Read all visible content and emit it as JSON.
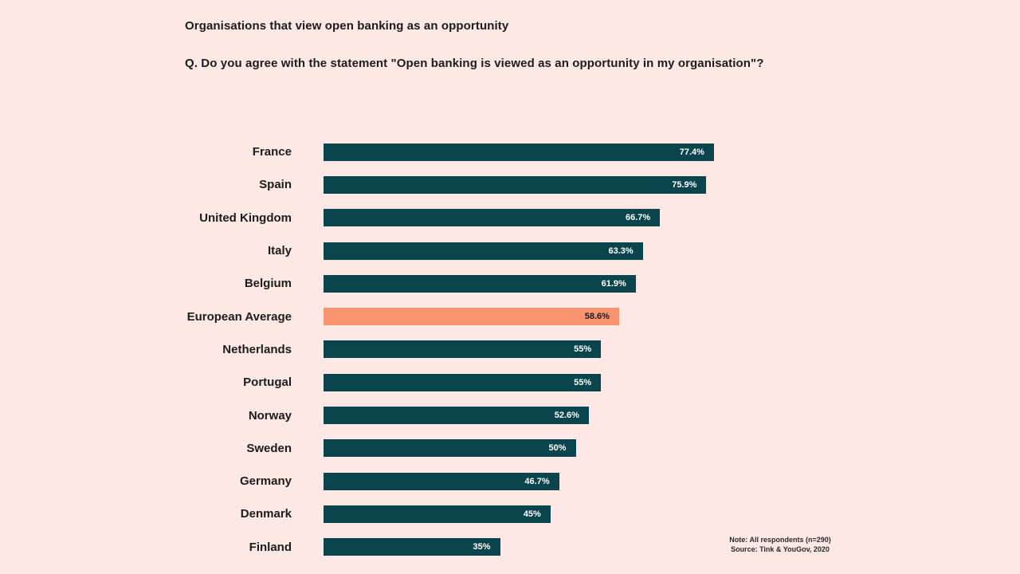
{
  "page": {
    "title": "Organisations that view open banking as an opportunity",
    "subtitle": "Q. Do you agree with the statement \"Open banking is viewed as an opportunity in my organisation\"?",
    "note_line1": "Note: All respondents (n=290)",
    "note_line2": "Source: Tink & YouGov, 2020"
  },
  "colors": {
    "background": "#fde8e5",
    "bar": "#0a444d",
    "highlight_bar": "#f79470",
    "heading_text": "#1c1c1c",
    "bar_value_text": "#ffffff",
    "highlight_value_text": "#1c1c1c"
  },
  "chart_data": {
    "type": "bar",
    "orientation": "horizontal",
    "title": "Organisations that view open banking as an opportunity",
    "subtitle": "Q. Do you agree with the statement \"Open banking is viewed as an opportunity in my organisation\"?",
    "categories": [
      "France",
      "Spain",
      "United Kingdom",
      "Italy",
      "Belgium",
      "European Average",
      "Netherlands",
      "Portugal",
      "Norway",
      "Sweden",
      "Germany",
      "Denmark",
      "Finland"
    ],
    "values": [
      77.4,
      75.9,
      66.7,
      63.3,
      61.9,
      58.6,
      55,
      55,
      52.6,
      50,
      46.7,
      45,
      35
    ],
    "display_values": [
      "77.4%",
      "75.9%",
      "66.7%",
      "63.3%",
      "61.9%",
      "58.6%",
      "55%",
      "55%",
      "52.6%",
      "50%",
      "46.7%",
      "45%",
      "35%"
    ],
    "highlight_index": 5,
    "xlabel": "",
    "ylabel": "",
    "xlim": [
      0,
      100
    ],
    "grid": false,
    "legend": false,
    "value_label_position": "inside-right"
  }
}
